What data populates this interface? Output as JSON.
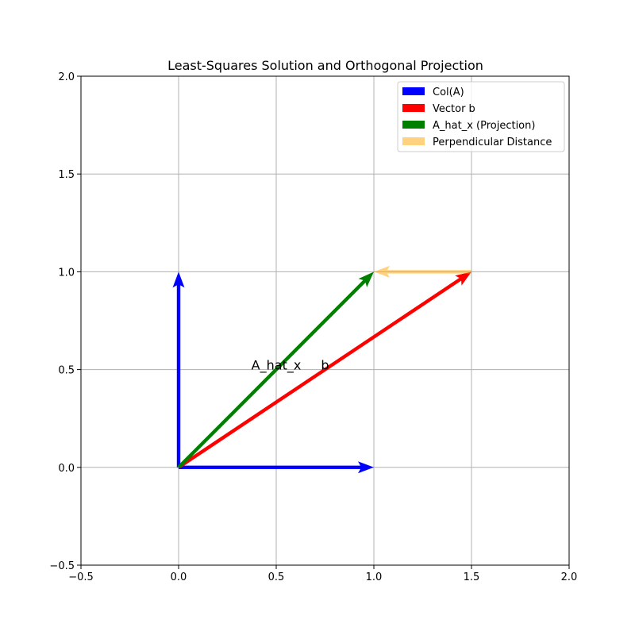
{
  "chart_data": {
    "type": "quiver",
    "title": "Least-Squares Solution and Orthogonal Projection",
    "xlabel": "",
    "ylabel": "",
    "xlim": [
      -0.5,
      2.0
    ],
    "ylim": [
      -0.5,
      2.0
    ],
    "xticks": [
      -0.5,
      0.0,
      0.5,
      1.0,
      1.5,
      2.0
    ],
    "xtick_labels": [
      "−0.5",
      "0.0",
      "0.5",
      "1.0",
      "1.5",
      "2.0"
    ],
    "yticks": [
      -0.5,
      0.0,
      0.5,
      1.0,
      1.5,
      2.0
    ],
    "ytick_labels": [
      "−0.5",
      "0.0",
      "0.5",
      "1.0",
      "1.5",
      "2.0"
    ],
    "grid": true,
    "legend_position": "top-right",
    "vectors": [
      {
        "series": "Col(A)",
        "from": [
          0,
          0
        ],
        "to": [
          1,
          0
        ],
        "color": "#0000ff"
      },
      {
        "series": "Col(A)",
        "from": [
          0,
          0
        ],
        "to": [
          0,
          1
        ],
        "color": "#0000ff"
      },
      {
        "series": "Vector b",
        "from": [
          0,
          0
        ],
        "to": [
          1.5,
          1
        ],
        "color": "#ff0000"
      },
      {
        "series": "A_hat_x (Projection)",
        "from": [
          0,
          0
        ],
        "to": [
          1,
          1
        ],
        "color": "#008000"
      },
      {
        "series": "Perpendicular Distance",
        "from": [
          1.5,
          1
        ],
        "to": [
          1,
          1
        ],
        "color": "#ffa500",
        "opacity": 0.5
      }
    ],
    "legend": [
      {
        "label": "Col(A)",
        "color": "#0000ff",
        "opacity": 1
      },
      {
        "label": "Vector b",
        "color": "#ff0000",
        "opacity": 1
      },
      {
        "label": "A_hat_x (Projection)",
        "color": "#008000",
        "opacity": 1
      },
      {
        "label": "Perpendicular Distance",
        "color": "#ffa500",
        "opacity": 0.5
      }
    ],
    "annotations": [
      {
        "text": "A_hat_x",
        "x": 0.5,
        "y": 0.5
      },
      {
        "text": "b",
        "x": 0.75,
        "y": 0.5
      }
    ]
  }
}
